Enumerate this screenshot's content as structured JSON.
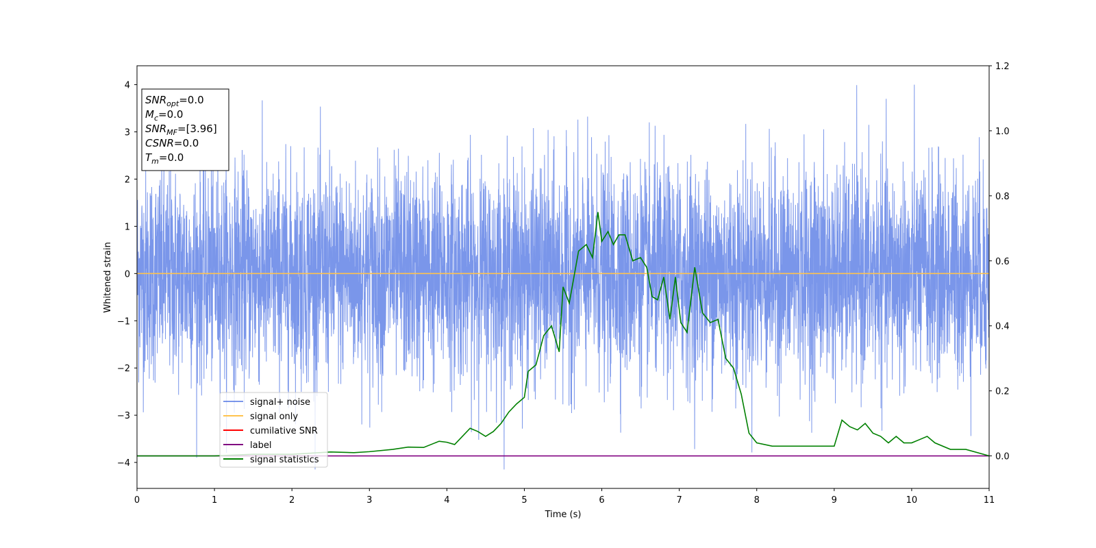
{
  "chart_data": {
    "type": "line",
    "xlabel": "Time (s)",
    "ylabel": "Whitened strain",
    "xlim": [
      0,
      11
    ],
    "ylim": [
      -4.55,
      4.4
    ],
    "y2lim": [
      -0.1,
      1.2
    ],
    "xticks": [
      "0",
      "1",
      "2",
      "3",
      "4",
      "5",
      "6",
      "7",
      "8",
      "9",
      "10",
      "11"
    ],
    "yticks": [
      "4",
      "3",
      "2",
      "1",
      "0",
      "−1",
      "−2",
      "−3",
      "−4"
    ],
    "y2ticks": [
      "1.2",
      "1.0",
      "0.8",
      "0.6",
      "0.4",
      "0.2",
      "0.0"
    ],
    "grid": false,
    "legend_position": "lower-left",
    "series": [
      {
        "name": "signal+ noise",
        "color": "#4169E1",
        "axis": "left",
        "noise_envelope": {
          "typical_amplitude": 1.4,
          "spike_max": 4.0,
          "spike_min": -4.15,
          "mean": 0.0
        }
      },
      {
        "name": "signal only",
        "color": "#FFC34D",
        "axis": "left",
        "x": [
          0,
          11
        ],
        "y": [
          0,
          0
        ]
      },
      {
        "name": "cumilative SNR",
        "color": "#FF0000",
        "axis": "left",
        "x": [],
        "y": []
      },
      {
        "name": "label",
        "color": "#800080",
        "axis": "right",
        "x": [
          0,
          11
        ],
        "y": [
          0,
          0
        ]
      },
      {
        "name": "signal statistics",
        "color": "#008000",
        "axis": "right",
        "x": [
          0,
          0.5,
          1.0,
          1.5,
          2.0,
          2.5,
          2.8,
          3.0,
          3.3,
          3.5,
          3.7,
          3.9,
          4.0,
          4.1,
          4.2,
          4.3,
          4.4,
          4.5,
          4.6,
          4.7,
          4.8,
          4.9,
          5.0,
          5.05,
          5.15,
          5.25,
          5.35,
          5.45,
          5.5,
          5.58,
          5.7,
          5.8,
          5.88,
          5.95,
          6.0,
          6.08,
          6.15,
          6.22,
          6.3,
          6.4,
          6.5,
          6.58,
          6.65,
          6.72,
          6.8,
          6.88,
          6.95,
          7.02,
          7.1,
          7.2,
          7.3,
          7.4,
          7.5,
          7.6,
          7.7,
          7.8,
          7.9,
          8.0,
          8.2,
          8.5,
          8.8,
          9.0,
          9.1,
          9.2,
          9.3,
          9.4,
          9.5,
          9.6,
          9.7,
          9.8,
          9.9,
          10.0,
          10.1,
          10.2,
          10.3,
          10.5,
          10.7,
          11.0
        ],
        "y": [
          0.0,
          0.0,
          0.0,
          0.005,
          0.005,
          0.012,
          0.01,
          0.013,
          0.02,
          0.027,
          0.026,
          0.045,
          0.042,
          0.035,
          0.06,
          0.085,
          0.075,
          0.06,
          0.075,
          0.1,
          0.135,
          0.16,
          0.18,
          0.26,
          0.28,
          0.37,
          0.4,
          0.32,
          0.52,
          0.47,
          0.63,
          0.65,
          0.61,
          0.75,
          0.66,
          0.69,
          0.65,
          0.68,
          0.68,
          0.6,
          0.61,
          0.58,
          0.49,
          0.48,
          0.55,
          0.42,
          0.55,
          0.41,
          0.38,
          0.58,
          0.44,
          0.41,
          0.42,
          0.3,
          0.27,
          0.19,
          0.07,
          0.04,
          0.03,
          0.03,
          0.03,
          0.03,
          0.11,
          0.09,
          0.08,
          0.1,
          0.07,
          0.06,
          0.04,
          0.06,
          0.04,
          0.04,
          0.05,
          0.06,
          0.04,
          0.02,
          0.02,
          0.0
        ]
      }
    ],
    "annotation_box": {
      "lines": [
        {
          "base": "SNR",
          "sub": "opt",
          "value": "=0.0"
        },
        {
          "base": "M",
          "sub": "c",
          "value": "=0.0"
        },
        {
          "base": "SNR",
          "sub": "MF",
          "value": "=[3.96]"
        },
        {
          "base": "CSNR",
          "sub": "",
          "value": "=0.0"
        },
        {
          "base": "T",
          "sub": "m",
          "value": "=0.0"
        }
      ]
    }
  }
}
